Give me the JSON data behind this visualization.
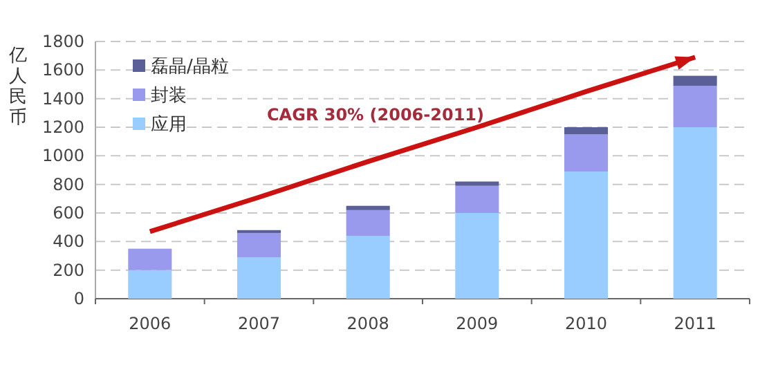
{
  "chart_data": {
    "type": "bar",
    "stacked": true,
    "ylabel": "亿人民币",
    "categories": [
      "2006",
      "2007",
      "2008",
      "2009",
      "2010",
      "2011"
    ],
    "series": [
      {
        "name": "应用",
        "color": "#99ccff",
        "values": [
          200,
          290,
          440,
          600,
          890,
          1200
        ]
      },
      {
        "name": "封装",
        "color": "#9999ee",
        "values": [
          150,
          170,
          180,
          190,
          260,
          290
        ]
      },
      {
        "name": "磊晶/晶粒",
        "color": "#5b5f98",
        "values": [
          0,
          20,
          30,
          30,
          50,
          70
        ]
      },
      {
        "type": "line",
        "color": "#cc1111",
        "values": [
          470,
          710,
          960,
          1200,
          1450,
          1690
        ]
      }
    ],
    "ylim": [
      0,
      1800
    ],
    "yticks": [
      0,
      200,
      400,
      600,
      800,
      1000,
      1200,
      1400,
      1600,
      1800
    ],
    "grid": "y",
    "legend": "top left",
    "annotations": [
      "CAGR 30% (2006-2011)"
    ]
  }
}
